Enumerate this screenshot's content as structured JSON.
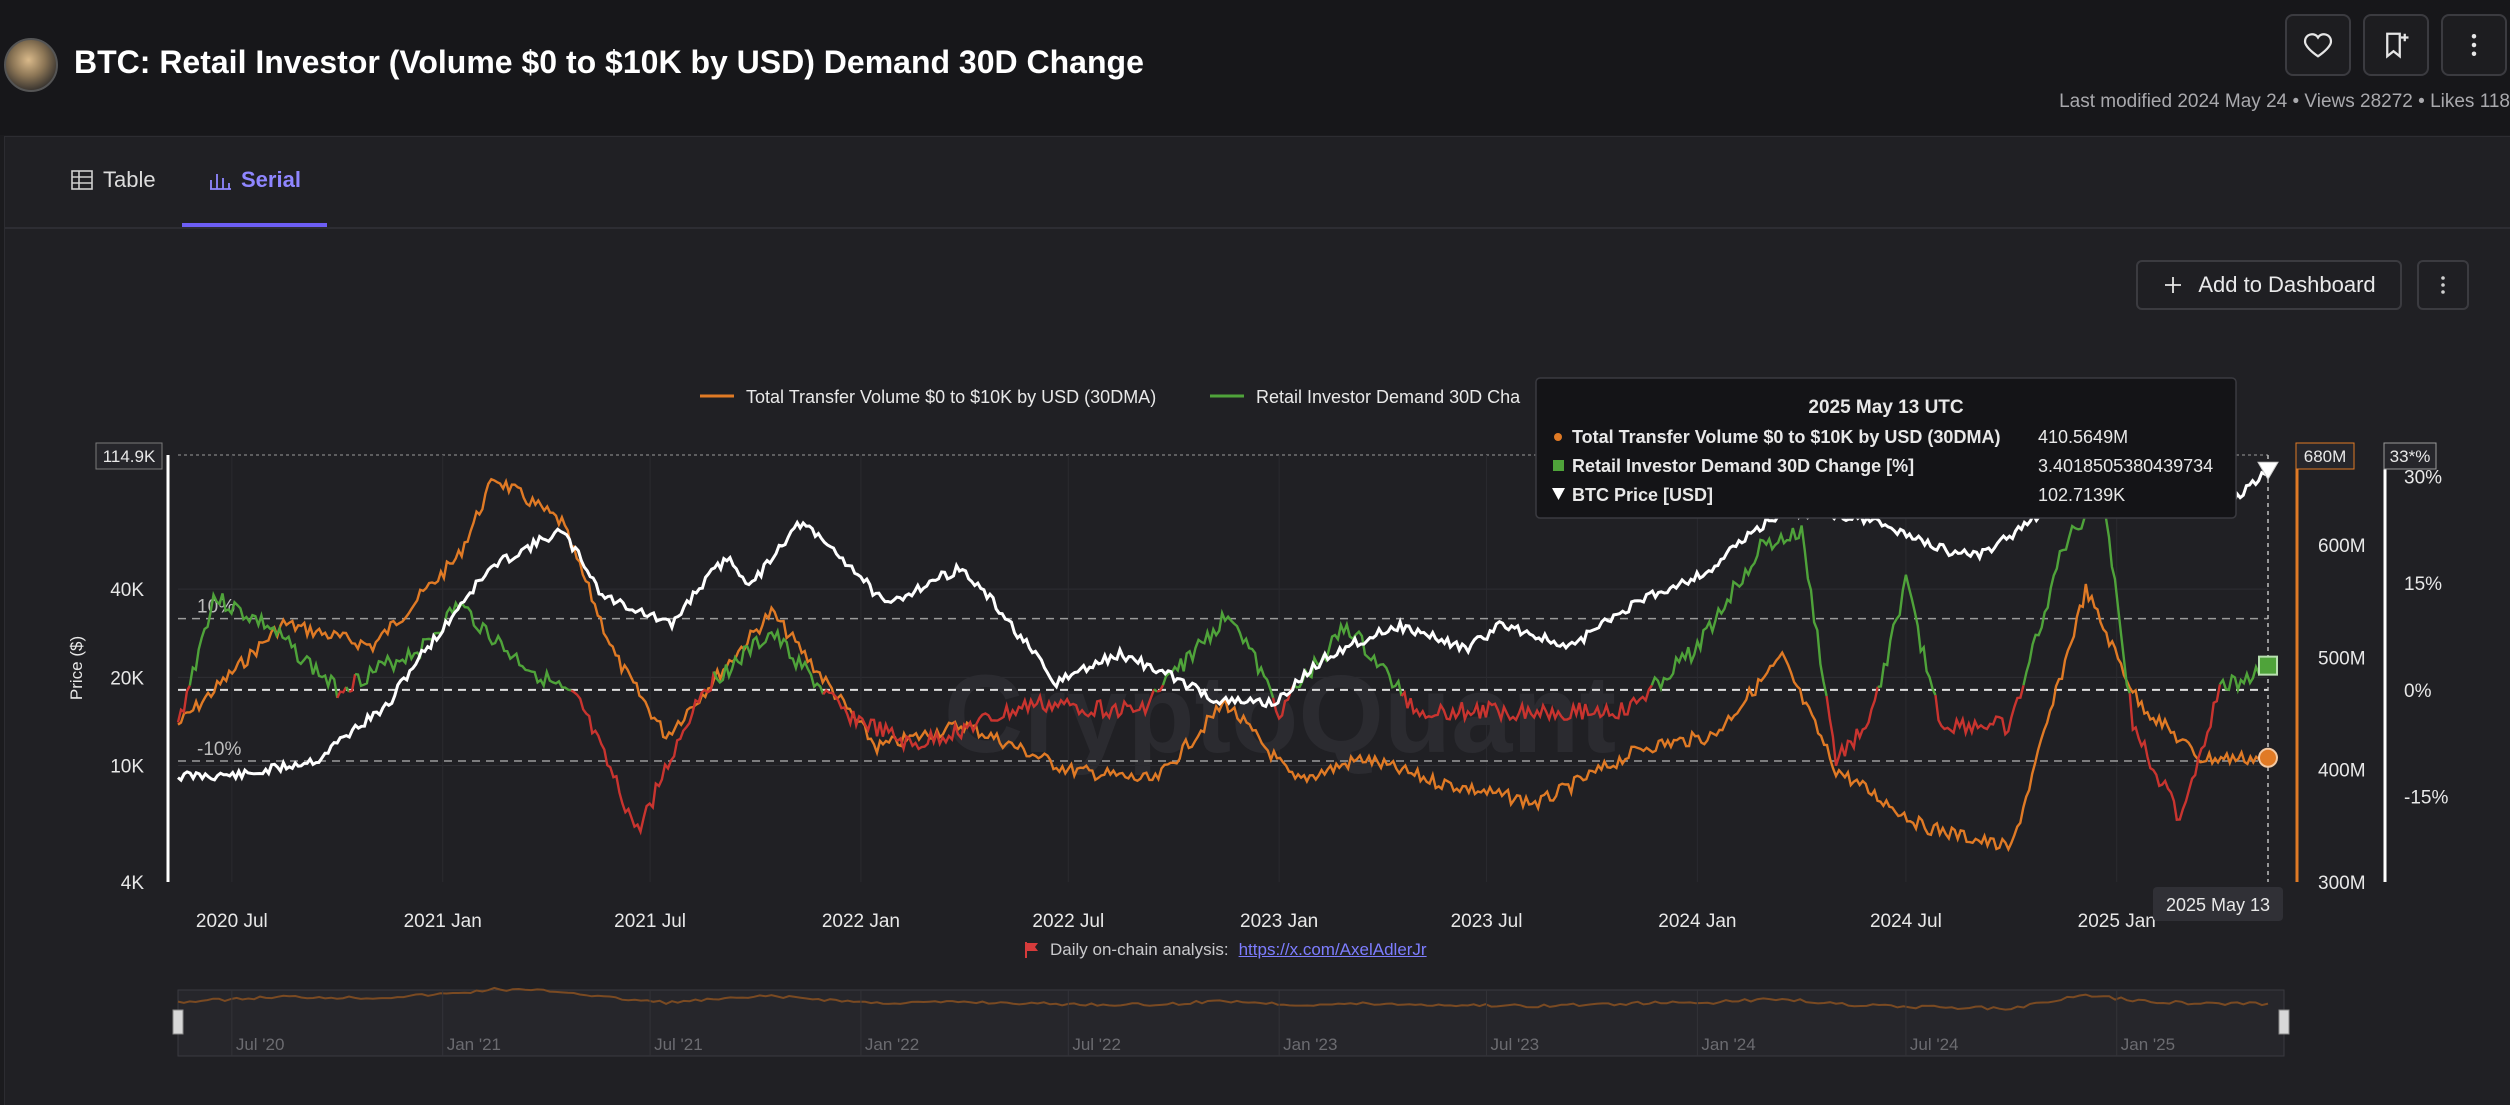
{
  "header": {
    "title": "BTC: Retail Investor (Volume $0 to $10K by USD) Demand 30D Change",
    "meta": "Last modified 2024 May 24 • Views 28272 • Likes 118"
  },
  "tabs": [
    {
      "label": "Table",
      "icon": "table-icon"
    },
    {
      "label": "Serial",
      "icon": "bar-chart-icon",
      "active": true
    }
  ],
  "toolbar": {
    "add_dashboard_label": "Add to Dashboard"
  },
  "colors": {
    "btc": "#ffffff",
    "volume": "#e07a25",
    "demand_pos": "#4fa33a",
    "demand_neg": "#c9342f",
    "accent": "#6d5ef5",
    "background": "#202024"
  },
  "chart_data": {
    "type": "line",
    "watermark": "CryptoQuant",
    "legend": [
      {
        "label": "Total Transfer Volume $0 to $10K by USD (30DMA)",
        "color": "#e07a25"
      },
      {
        "label": "Retail Investor Demand 30D Cha",
        "color": "#4fa33a"
      }
    ],
    "x_ticks": [
      "2020 Jul",
      "2021 Jan",
      "2021 Jul",
      "2022 Jan",
      "2022 Jul",
      "2023 Jan",
      "2023 Jul",
      "2024 Jan",
      "2024 Jul",
      "2025 Jan"
    ],
    "x_range": [
      "2020-05-15",
      "2025-05-13"
    ],
    "left_axis": {
      "label": "Price ($)",
      "scale": "log",
      "ticks": [
        "4K",
        "10K",
        "20K",
        "40K"
      ],
      "range": [
        4000,
        114900
      ],
      "top_marker": "114.9K"
    },
    "vol_axis": {
      "ticks": [
        "300M",
        "400M",
        "500M",
        "600M"
      ],
      "range": [
        300,
        680
      ],
      "top_marker": "680M"
    },
    "pct_axis": {
      "ticks": [
        "-15%",
        "0%",
        "15%",
        "30%"
      ],
      "range": [
        -27,
        33
      ],
      "top_marker": "33*%"
    },
    "ref_lines": [
      {
        "value": 10,
        "label": "10%"
      },
      {
        "value": 0,
        "label": ""
      },
      {
        "value": -10,
        "label": "-10%"
      }
    ],
    "series": [
      {
        "name": "BTC Price [USD]",
        "axis": "price",
        "color": "#ffffff",
        "points": [
          [
            "2020-05-15",
            9200
          ],
          [
            "2020-07-15",
            9300
          ],
          [
            "2020-09-15",
            10500
          ],
          [
            "2020-11-15",
            16000
          ],
          [
            "2021-01-01",
            29000
          ],
          [
            "2021-02-15",
            48000
          ],
          [
            "2021-04-14",
            63000
          ],
          [
            "2021-05-20",
            38000
          ],
          [
            "2021-07-20",
            30000
          ],
          [
            "2021-09-06",
            51000
          ],
          [
            "2021-09-28",
            41000
          ],
          [
            "2021-11-09",
            67000
          ],
          [
            "2022-01-22",
            35000
          ],
          [
            "2022-03-28",
            47000
          ],
          [
            "2022-05-15",
            29000
          ],
          [
            "2022-06-18",
            19000
          ],
          [
            "2022-08-15",
            24000
          ],
          [
            "2022-11-10",
            16500
          ],
          [
            "2022-12-31",
            16500
          ],
          [
            "2023-02-15",
            24000
          ],
          [
            "2023-04-14",
            30000
          ],
          [
            "2023-06-15",
            25000
          ],
          [
            "2023-07-15",
            30500
          ],
          [
            "2023-09-11",
            25000
          ],
          [
            "2023-11-15",
            37000
          ],
          [
            "2024-01-11",
            46000
          ],
          [
            "2024-03-14",
            73000
          ],
          [
            "2024-05-20",
            71000
          ],
          [
            "2024-08-05",
            54000
          ],
          [
            "2024-09-06",
            53000
          ],
          [
            "2024-10-15",
            66000
          ],
          [
            "2024-12-17",
            106000
          ],
          [
            "2025-01-20",
            105000
          ],
          [
            "2025-04-08",
            76000
          ],
          [
            "2025-05-13",
            102714
          ]
        ]
      },
      {
        "name": "Total Transfer Volume $0 to $10K by USD (30DMA)",
        "axis": "volume",
        "color": "#e07a25",
        "points": [
          [
            "2020-05-15",
            440
          ],
          [
            "2020-08-15",
            530
          ],
          [
            "2020-11-01",
            510
          ],
          [
            "2021-01-15",
            590
          ],
          [
            "2021-02-15",
            660
          ],
          [
            "2021-04-15",
            620
          ],
          [
            "2021-06-01",
            500
          ],
          [
            "2021-07-15",
            430
          ],
          [
            "2021-10-15",
            540
          ],
          [
            "2022-01-15",
            420
          ],
          [
            "2022-04-01",
            440
          ],
          [
            "2022-07-01",
            400
          ],
          [
            "2022-09-15",
            390
          ],
          [
            "2022-11-15",
            460
          ],
          [
            "2023-01-15",
            390
          ],
          [
            "2023-03-15",
            410
          ],
          [
            "2023-05-15",
            390
          ],
          [
            "2023-08-15",
            370
          ],
          [
            "2023-11-15",
            420
          ],
          [
            "2024-01-15",
            430
          ],
          [
            "2024-03-15",
            500
          ],
          [
            "2024-05-01",
            400
          ],
          [
            "2024-07-15",
            350
          ],
          [
            "2024-10-01",
            330
          ],
          [
            "2024-12-05",
            560
          ],
          [
            "2025-01-20",
            460
          ],
          [
            "2025-03-15",
            410
          ],
          [
            "2025-05-13",
            410.5649
          ]
        ]
      },
      {
        "name": "Retail Investor Demand 30D Change [%]",
        "axis": "pct",
        "color": "#4fa33a",
        "neg_color": "#c9342f",
        "points": [
          [
            "2020-05-15",
            -5
          ],
          [
            "2020-06-15",
            13
          ],
          [
            "2020-08-01",
            9
          ],
          [
            "2020-10-01",
            0
          ],
          [
            "2020-12-15",
            6
          ],
          [
            "2021-01-15",
            12
          ],
          [
            "2021-03-01",
            5
          ],
          [
            "2021-05-01",
            -2
          ],
          [
            "2021-06-20",
            -20
          ],
          [
            "2021-08-15",
            0
          ],
          [
            "2021-10-15",
            8
          ],
          [
            "2021-12-15",
            -3
          ],
          [
            "2022-02-15",
            -8
          ],
          [
            "2022-06-01",
            -2
          ],
          [
            "2022-09-01",
            -3
          ],
          [
            "2022-11-20",
            11
          ],
          [
            "2023-01-01",
            -3
          ],
          [
            "2023-03-01",
            9
          ],
          [
            "2023-05-01",
            -3
          ],
          [
            "2023-08-01",
            -3
          ],
          [
            "2023-11-01",
            -3
          ],
          [
            "2024-01-01",
            6
          ],
          [
            "2024-02-25",
            20
          ],
          [
            "2024-04-01",
            22
          ],
          [
            "2024-05-01",
            -10
          ],
          [
            "2024-06-01",
            -4
          ],
          [
            "2024-07-01",
            15
          ],
          [
            "2024-08-01",
            -5
          ],
          [
            "2024-10-01",
            -5
          ],
          [
            "2024-11-15",
            20
          ],
          [
            "2024-12-20",
            28
          ],
          [
            "2025-01-15",
            -5
          ],
          [
            "2025-02-25",
            -18
          ],
          [
            "2025-04-01",
            0
          ],
          [
            "2025-05-13",
            3.4019
          ]
        ]
      }
    ],
    "tooltip": {
      "date": "2025 May 13 UTC",
      "rows": [
        {
          "marker": "circle",
          "label": "Total Transfer Volume $0 to $10K by USD (30DMA)",
          "value": "410.5649M",
          "color": "#e07a25"
        },
        {
          "marker": "square",
          "label": "Retail Investor Demand 30D Change [%]",
          "value": "3.4018505380439734",
          "color": "#4fa33a"
        },
        {
          "marker": "triangle",
          "label": "BTC Price [USD]",
          "value": "102.7139K",
          "color": "#ffffff"
        }
      ]
    },
    "crosshair_date": "2025 May 13",
    "navigator_ticks": [
      "Jul '20",
      "Jan '21",
      "Jul '21",
      "Jan '22",
      "Jul '22",
      "Jan '23",
      "Jul '23",
      "Jan '24",
      "Jul '24",
      "Jan '25"
    ],
    "footnote": {
      "prefix": "Daily on-chain analysis:",
      "link": "https://x.com/AxelAdlerJr"
    }
  }
}
